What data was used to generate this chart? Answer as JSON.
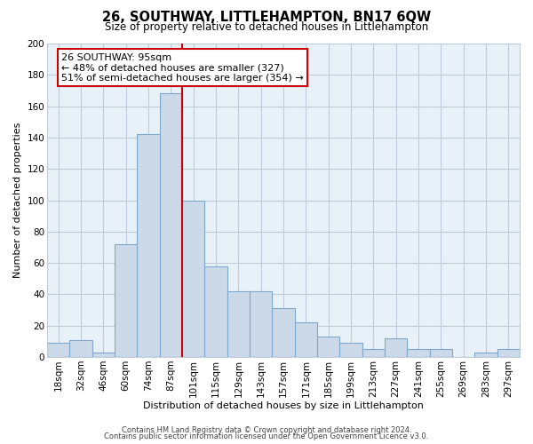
{
  "title": "26, SOUTHWAY, LITTLEHAMPTON, BN17 6QW",
  "subtitle": "Size of property relative to detached houses in Littlehampton",
  "xlabel": "Distribution of detached houses by size in Littlehampton",
  "ylabel": "Number of detached properties",
  "bin_labels": [
    "18sqm",
    "32sqm",
    "46sqm",
    "60sqm",
    "74sqm",
    "87sqm",
    "101sqm",
    "115sqm",
    "129sqm",
    "143sqm",
    "157sqm",
    "171sqm",
    "185sqm",
    "199sqm",
    "213sqm",
    "227sqm",
    "241sqm",
    "255sqm",
    "269sqm",
    "283sqm",
    "297sqm"
  ],
  "bar_values": [
    9,
    11,
    3,
    72,
    142,
    168,
    100,
    58,
    42,
    42,
    31,
    22,
    13,
    9,
    5,
    12,
    5,
    5,
    0,
    3,
    5
  ],
  "bar_color": "#ccd9e8",
  "bar_edge_color": "#7fa8cc",
  "vline_color": "#cc0000",
  "vline_pos": 6,
  "ylim": [
    0,
    200
  ],
  "yticks": [
    0,
    20,
    40,
    60,
    80,
    100,
    120,
    140,
    160,
    180,
    200
  ],
  "annotation_text": "26 SOUTHWAY: 95sqm\n← 48% of detached houses are smaller (327)\n51% of semi-detached houses are larger (354) →",
  "annotation_box_color": "#ffffff",
  "annotation_box_edge": "#cc0000",
  "footer1": "Contains HM Land Registry data © Crown copyright and database right 2024.",
  "footer2": "Contains public sector information licensed under the Open Government Licence v3.0.",
  "background_color": "#ffffff",
  "plot_bg_color": "#e8f0f8",
  "grid_color": "#c0ccd8",
  "title_fontsize": 10.5,
  "subtitle_fontsize": 8.5,
  "axis_label_fontsize": 8,
  "tick_fontsize": 7.5,
  "annotation_fontsize": 8,
  "footer_fontsize": 6
}
